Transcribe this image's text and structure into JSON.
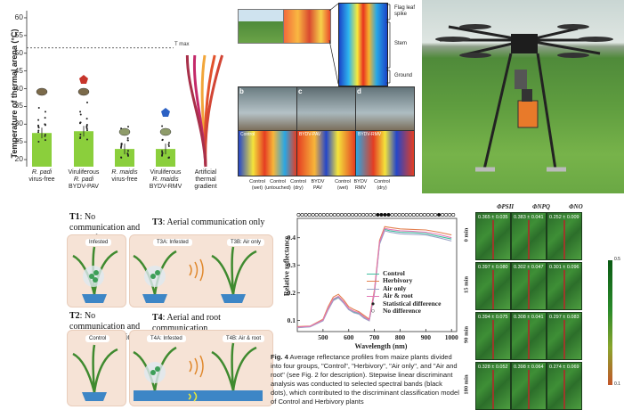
{
  "thermal_chart": {
    "ylabel": "Temperature of thermal arena (°C)",
    "yticks": [
      "60",
      "55",
      "50",
      "45",
      "40",
      "35",
      "30",
      "25",
      "20"
    ],
    "tmax_label": "T max",
    "groups": [
      {
        "line1": "R. padi",
        "line2": "virus-free",
        "italic1": true
      },
      {
        "line1": "Viruliferous",
        "line2": "R. padi",
        "line3": "BYDV-PAV"
      },
      {
        "line1": "R. maidis",
        "line2": "virus-free",
        "italic1": true
      },
      {
        "line1": "Viruliferous",
        "line2": "R. maidis",
        "line3": "BYDV-RMV"
      },
      {
        "line1": "Artificial",
        "line2": "thermal",
        "line3": "gradient"
      }
    ]
  },
  "chart_data": [
    {
      "type": "bar",
      "ylabel": "Temperature of thermal arena (°C)",
      "ylim": [
        18,
        62
      ],
      "categories": [
        "R. padi virus-free",
        "Viruliferous R. padi BYDV-PAV",
        "R. maidis virus-free",
        "Viruliferous R. maidis BYDV-RMV"
      ],
      "values": [
        27.5,
        28,
        23,
        23
      ],
      "annotations": [
        {
          "label": "T max",
          "y": 51.5
        }
      ]
    },
    {
      "type": "line",
      "xlabel": "Wavelength (nm)",
      "ylabel": "Relative reflectance",
      "xlim": [
        400,
        1020
      ],
      "ylim": [
        0.06,
        0.47
      ],
      "x": [
        400,
        450,
        500,
        520,
        540,
        560,
        580,
        600,
        620,
        640,
        660,
        680,
        700,
        720,
        740,
        760,
        800,
        850,
        900,
        950,
        1000
      ],
      "series": [
        {
          "name": "Control",
          "color": "#3fbf9f",
          "values": [
            0.075,
            0.078,
            0.1,
            0.14,
            0.175,
            0.185,
            0.165,
            0.14,
            0.13,
            0.125,
            0.11,
            0.1,
            0.2,
            0.38,
            0.43,
            0.425,
            0.42,
            0.418,
            0.415,
            0.405,
            0.395
          ]
        },
        {
          "name": "Herbivory",
          "color": "#e3804f",
          "values": [
            0.078,
            0.08,
            0.105,
            0.15,
            0.185,
            0.195,
            0.175,
            0.15,
            0.14,
            0.132,
            0.118,
            0.105,
            0.21,
            0.39,
            0.44,
            0.437,
            0.432,
            0.43,
            0.428,
            0.42,
            0.41
          ]
        },
        {
          "name": "Air only",
          "color": "#9aa3c7",
          "values": [
            0.074,
            0.077,
            0.099,
            0.138,
            0.172,
            0.182,
            0.163,
            0.139,
            0.128,
            0.123,
            0.108,
            0.099,
            0.198,
            0.376,
            0.425,
            0.42,
            0.414,
            0.412,
            0.41,
            0.4,
            0.388
          ]
        },
        {
          "name": "Air & root",
          "color": "#e277b5",
          "values": [
            0.076,
            0.079,
            0.102,
            0.144,
            0.178,
            0.188,
            0.168,
            0.144,
            0.134,
            0.128,
            0.113,
            0.102,
            0.204,
            0.384,
            0.434,
            0.43,
            0.425,
            0.423,
            0.42,
            0.412,
            0.4
          ]
        }
      ]
    }
  ],
  "spectral_chart": {
    "ylabel": "Relative reflectance",
    "xlabel": "Wavelength (nm)",
    "xticks": [
      "500",
      "600",
      "700",
      "800",
      "900",
      "1000"
    ],
    "yticks": [
      "0.4",
      "0.3",
      "0.2",
      "0.1"
    ],
    "legend": [
      "Control",
      "Herbivory",
      "Air only",
      "Air & root"
    ],
    "legend_sig": "Statistical difference",
    "legend_nodiff": "No difference"
  },
  "caption": {
    "label": "Fig. 4",
    "text": "Average reflectance profiles from maize plants divided into four groups, \"Control\", \"Herbivory\", \"Air only\", and \"Air and root\" (see Fig. 2 for description). Stepwise linear discriminant analysis was conducted to selected spectral bands (black dots), which contributed to the discriminant classification model of Control and Herbivory plants"
  },
  "comm_diagram": {
    "t1_title": "T1",
    "t1_text": ": No communication and with infestation",
    "t2_title": "T2",
    "t2_text": ": No communication and without infestation",
    "t3_title": "T3",
    "t3_text": ": Aerial communication only",
    "t4_title": "T4",
    "t4_text": ": Aerial and root communication",
    "badge_infested": "Infested",
    "badge_control": "Control",
    "badge_t3a": "T3A: Infested",
    "badge_t3b": "T3B: Air only",
    "badge_t4a": "T4A: Infested",
    "badge_t4b": "T4B: Air & root"
  },
  "thermal_image": {
    "labels": [
      "Flag leaf",
      "spike",
      "Stem",
      "Ground"
    ],
    "panel_letters": [
      "b",
      "c",
      "d"
    ],
    "overlay_labels": [
      "Control",
      "BYDV-PAV",
      "BYDV-RMV"
    ],
    "xlabels": [
      [
        "Control",
        "(wet)"
      ],
      [
        "Control",
        "(untouched)"
      ],
      [
        "Control",
        "(dry)"
      ],
      [
        "BYDV",
        "PAV"
      ],
      [
        "Control",
        "(wet)"
      ],
      [
        "BYDV",
        "RMV"
      ],
      [
        "Control",
        "(dry)"
      ]
    ]
  },
  "phi_panel": {
    "headers": [
      "ΦPSII",
      "ΦNPQ",
      "ΦNO"
    ],
    "rows": [
      {
        "label": "0 min",
        "values": [
          "0.365 ± 0.035",
          "0.383 ± 0.041",
          "0.252 ± 0.009"
        ]
      },
      {
        "label": "15 min",
        "values": [
          "0.397 ± 0.080",
          "0.302 ± 0.047",
          "0.301 ± 0.096"
        ]
      },
      {
        "label": "90 min",
        "values": [
          "0.394 ± 0.075",
          "0.308 ± 0.041",
          "0.297 ± 0.083"
        ]
      },
      {
        "label": "180 min",
        "values": [
          "0.328 ± 0.052",
          "0.398 ± 0.064",
          "0.274 ± 0.069"
        ]
      }
    ],
    "scale_top": "0.5",
    "scale_bottom": "0.1"
  },
  "colors": {
    "bar_green": "#8bcf3c",
    "herbivory": "#e3804f",
    "control": "#3fbf9f",
    "air_only": "#9aa3c7",
    "air_root": "#e277b5"
  }
}
